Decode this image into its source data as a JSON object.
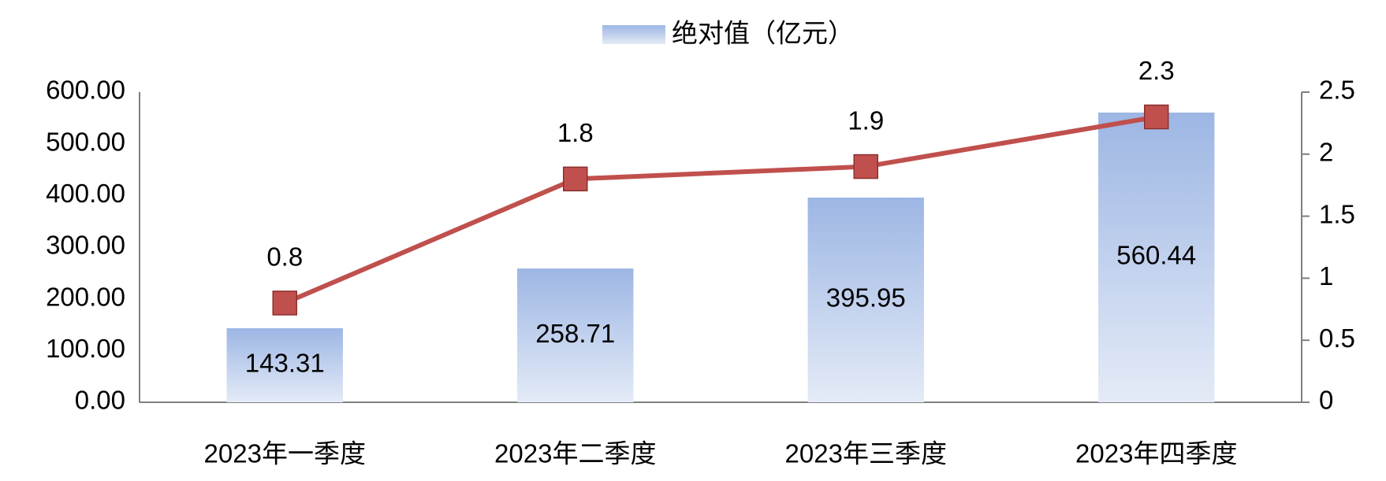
{
  "chart_data": {
    "type": "bar_line",
    "categories": [
      "2023年一季度",
      "2023年二季度",
      "2023年三季度",
      "2023年四季度"
    ],
    "series": [
      {
        "name": "绝对值（亿元）",
        "type": "bar",
        "color": "#9db6e4",
        "values": [
          143.31,
          258.71,
          395.95,
          560.44
        ]
      },
      {
        "type": "line",
        "axis": "y2",
        "color": "#c0504d",
        "values": [
          0.8,
          1.8,
          1.9,
          2.3
        ]
      }
    ],
    "ylim": [
      0,
      600
    ],
    "yticks": [
      {
        "value": 0,
        "label": "0.00"
      },
      {
        "value": 100,
        "label": "100.00"
      },
      {
        "value": 200,
        "label": "200.00"
      },
      {
        "value": 300,
        "label": "300.00"
      },
      {
        "value": 400,
        "label": "400.00"
      },
      {
        "value": 500,
        "label": "500.00"
      },
      {
        "value": 600,
        "label": "600.00"
      }
    ],
    "y2lim": [
      0,
      2.5
    ],
    "y2ticks": [
      0,
      0.5,
      1,
      1.5,
      2,
      2.5
    ],
    "legend": "top",
    "grid": false
  }
}
